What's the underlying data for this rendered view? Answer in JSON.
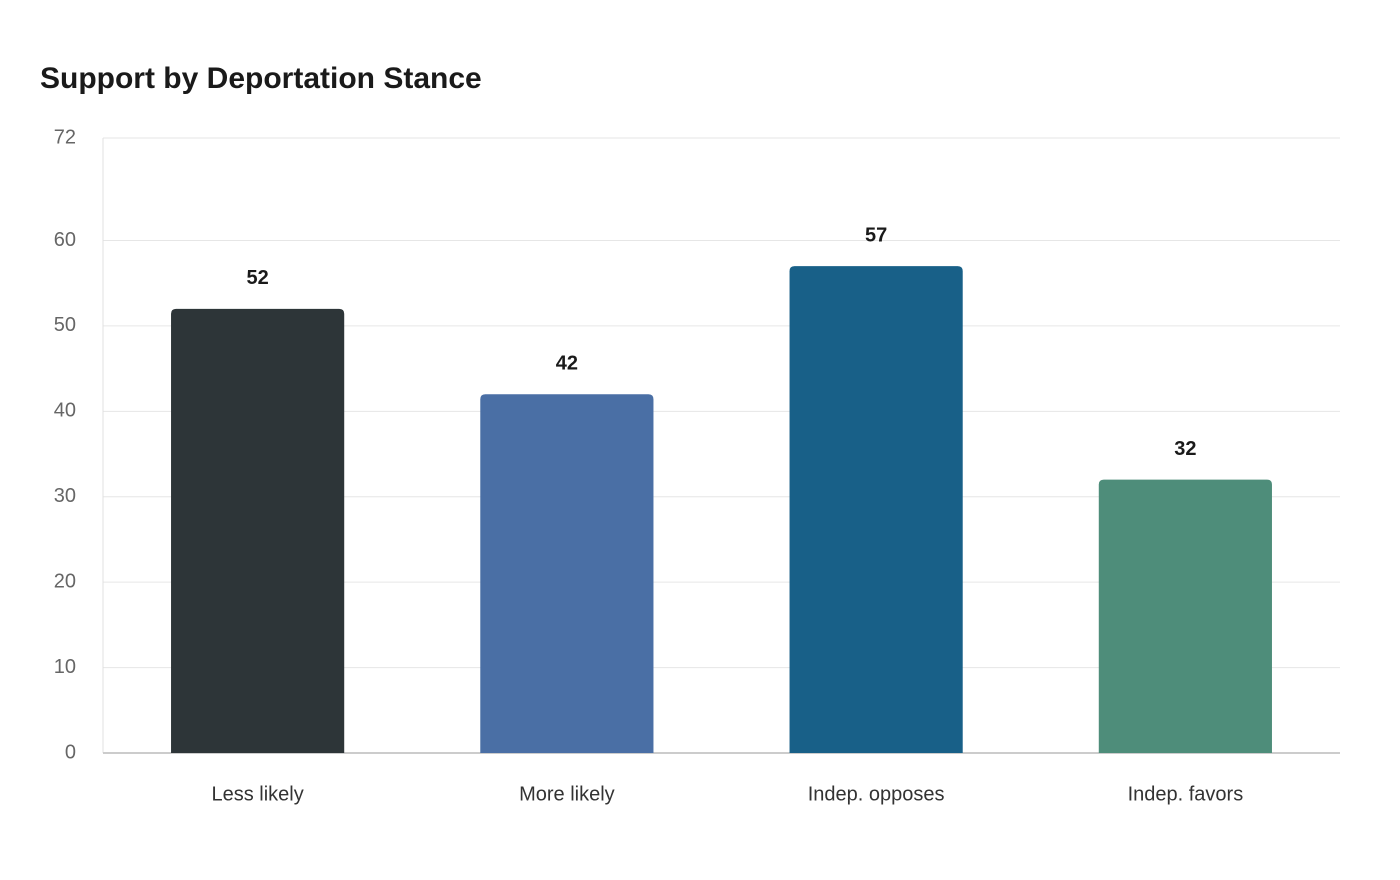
{
  "chart_data": {
    "type": "bar",
    "title": "Support by Deportation Stance",
    "categories": [
      "Less likely",
      "More likely",
      "Indep. opposes",
      "Indep. favors"
    ],
    "values": [
      52,
      42,
      57,
      32
    ],
    "colors": [
      "#2d3538",
      "#4a6fa5",
      "#186088",
      "#4e8d7a"
    ],
    "ylim": [
      0,
      72
    ],
    "yticks": [
      0,
      10,
      20,
      30,
      40,
      50,
      60,
      72
    ],
    "grid": true
  }
}
